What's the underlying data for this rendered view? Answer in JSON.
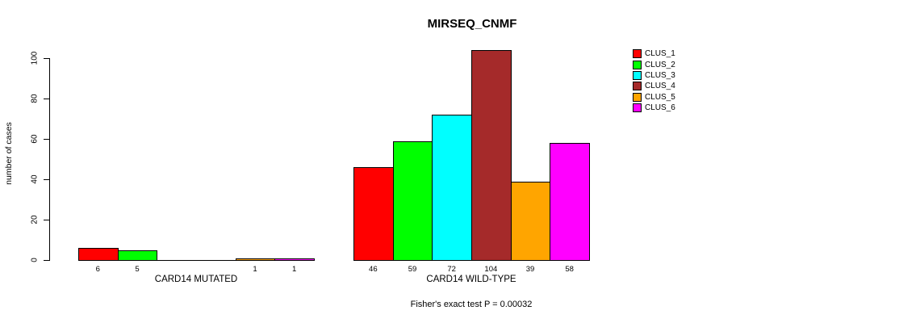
{
  "title": "MIRSEQ_CNMF",
  "subtitle": "Fisher's exact test P = 0.00032",
  "chart_data": {
    "type": "bar",
    "title": "MIRSEQ_CNMF",
    "xlabel": "",
    "ylabel": "number of cases",
    "ylim": [
      0,
      100
    ],
    "yticks": [
      0,
      20,
      40,
      60,
      80,
      100
    ],
    "grid": false,
    "legend_position": "right",
    "bar_border_color": "#000000",
    "background_color": "#ffffff",
    "series": [
      {
        "name": "CLUS_1",
        "color": "#ff0000"
      },
      {
        "name": "CLUS_2",
        "color": "#00ff00"
      },
      {
        "name": "CLUS_3",
        "color": "#00ffff"
      },
      {
        "name": "CLUS_4",
        "color": "#a52a2a"
      },
      {
        "name": "CLUS_5",
        "color": "#ffa500"
      },
      {
        "name": "CLUS_6",
        "color": "#ff00ff"
      }
    ],
    "groups": [
      {
        "label": "CARD14 MUTATED",
        "values": [
          6,
          5,
          0,
          0,
          1,
          1
        ],
        "bar_labels": [
          "6",
          "5",
          "",
          "",
          "1",
          "1"
        ]
      },
      {
        "label": "CARD14 WILD-TYPE",
        "values": [
          46,
          59,
          72,
          104,
          39,
          58
        ],
        "bar_labels": [
          "46",
          "59",
          "72",
          "104",
          "39",
          "58"
        ]
      }
    ],
    "annotation": "Fisher's exact test P = 0.00032"
  }
}
